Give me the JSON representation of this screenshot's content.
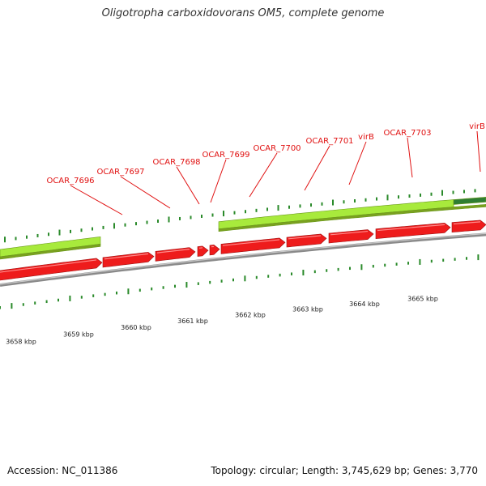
{
  "title": "Oligotropha carboxidovorans OM5, complete genome",
  "footer": {
    "accession": "Accession: NC_011386",
    "summary": "Topology: circular; Length: 3,745,629 bp; Genes: 3,770"
  },
  "colors": {
    "gene_label": "#e01010",
    "reverse_track": "#a8ea3c",
    "forward_gene": "#ee1c1c",
    "backbone": "#8a8a8a",
    "tick": "#2a8a2a",
    "highlight_block": "#2e7d32"
  },
  "genes": [
    {
      "label": "OCAR_7696"
    },
    {
      "label": "OCAR_7697"
    },
    {
      "label": "OCAR_7698"
    },
    {
      "label": "OCAR_7699"
    },
    {
      "label": "OCAR_7700"
    },
    {
      "label": "OCAR_7701"
    },
    {
      "label": "virB"
    },
    {
      "label": "OCAR_7703"
    },
    {
      "label": "virB"
    }
  ],
  "scale_labels": [
    "3658 kbp",
    "3659 kbp",
    "3660 kbp",
    "3661 kbp",
    "3662 kbp",
    "3663 kbp",
    "3664 kbp",
    "3665 kbp"
  ]
}
